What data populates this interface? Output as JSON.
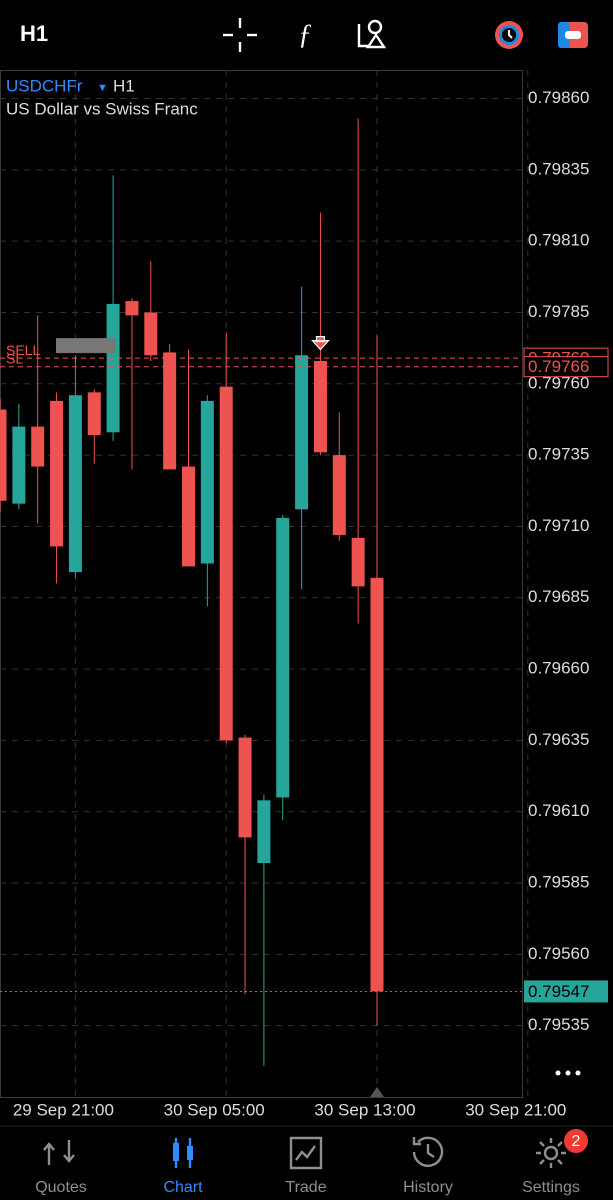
{
  "toolbar": {
    "timeframe": "H1"
  },
  "chart_data": {
    "type": "candlestick",
    "symbol": "USDCHFr",
    "timeframe": "H1",
    "description": "US Dollar vs Swiss Franc",
    "open": [
      0.79751,
      0.79718,
      0.79745,
      0.79754,
      0.79694,
      0.79757,
      0.79743,
      0.79789,
      0.79785,
      0.79771,
      0.79731,
      0.79697,
      0.79759,
      0.79636,
      0.79592,
      0.79615,
      0.79716,
      0.79768,
      0.79735,
      0.79706,
      0.79692
    ],
    "high": [
      0.79755,
      0.79753,
      0.79784,
      0.79757,
      0.7977,
      0.79758,
      0.79833,
      0.7979,
      0.79803,
      0.79774,
      0.79772,
      0.79756,
      0.79778,
      0.79637,
      0.79616,
      0.79714,
      0.79794,
      0.7982,
      0.7975,
      0.79853,
      0.79777
    ],
    "low": [
      0.79715,
      0.79716,
      0.79711,
      0.7969,
      0.79692,
      0.79732,
      0.7974,
      0.7973,
      0.79768,
      0.7973,
      0.79696,
      0.79682,
      0.79634,
      0.79546,
      0.79521,
      0.79607,
      0.79688,
      0.79735,
      0.79705,
      0.79676,
      0.79535
    ],
    "close": [
      0.79719,
      0.79745,
      0.79731,
      0.79703,
      0.79756,
      0.79742,
      0.79788,
      0.79784,
      0.7977,
      0.7973,
      0.79696,
      0.79754,
      0.79635,
      0.79601,
      0.79614,
      0.79713,
      0.7977,
      0.79736,
      0.79707,
      0.79689,
      0.79547
    ],
    "up_color": "#26a69a",
    "down_color": "#ef5350",
    "ylim": [
      0.7951,
      0.7987
    ],
    "yticks": [
      {
        "value": 0.7986,
        "label": "0.79860"
      },
      0.79835,
      {
        "value": 0.7981,
        "label": "0.79810"
      },
      0.79785,
      {
        "value": 0.7976,
        "label": "0.79760"
      },
      0.79735,
      {
        "value": 0.7971,
        "label": "0.79710"
      },
      0.79685,
      {
        "value": 0.7966,
        "label": "0.79660"
      },
      0.79635,
      {
        "value": 0.7961,
        "label": "0.79610"
      },
      0.79585,
      {
        "value": 0.7956,
        "label": "0.79560"
      },
      0.79535
    ],
    "x_tick_labels": [
      "29 Sep 21:00",
      "30 Sep 05:00",
      "30 Sep 13:00",
      "30 Sep 21:00"
    ],
    "grid": true,
    "current_price": 0.79547,
    "levels": [
      {
        "name": "SELL",
        "value": 0.79769,
        "color": "#ef5350"
      },
      {
        "name": "SL",
        "value": 0.79766,
        "color": "#ef5350"
      }
    ]
  },
  "nav": {
    "items": [
      "Quotes",
      "Chart",
      "Trade",
      "History",
      "Settings"
    ],
    "active": "Chart",
    "badge": "2"
  }
}
